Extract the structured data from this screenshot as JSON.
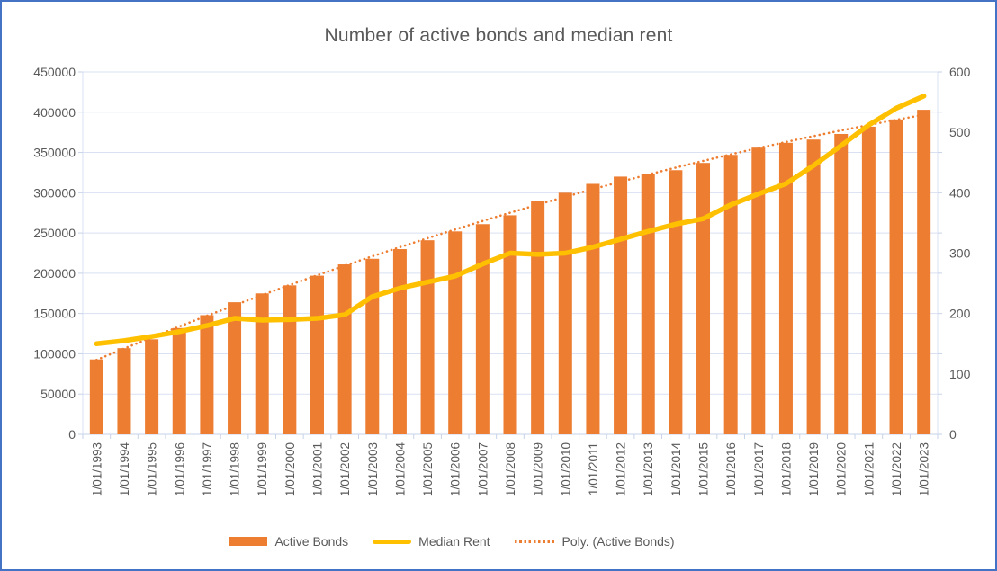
{
  "chart_data": {
    "type": "combo",
    "title": "Number of active bonds and median rent",
    "categories": [
      "1/01/1993",
      "1/01/1994",
      "1/01/1995",
      "1/01/1996",
      "1/01/1997",
      "1/01/1998",
      "1/01/1999",
      "1/01/2000",
      "1/01/2001",
      "1/01/2002",
      "1/01/2003",
      "1/01/2004",
      "1/01/2005",
      "1/01/2006",
      "1/01/2007",
      "1/01/2008",
      "1/01/2009",
      "1/01/2010",
      "1/01/2011",
      "1/01/2012",
      "1/01/2013",
      "1/01/2014",
      "1/01/2015",
      "1/01/2016",
      "1/01/2017",
      "1/01/2018",
      "1/01/2019",
      "1/01/2020",
      "1/01/2021",
      "1/01/2022",
      "1/01/2023"
    ],
    "series": [
      {
        "name": "Active Bonds",
        "type": "bar",
        "axis": "left",
        "color": "#ED7D31",
        "values": [
          93000,
          107000,
          118000,
          132000,
          148000,
          164000,
          175000,
          185000,
          197000,
          211000,
          218000,
          230000,
          241000,
          252000,
          261000,
          272000,
          290000,
          300000,
          311000,
          320000,
          323000,
          328000,
          337000,
          347000,
          356000,
          362000,
          366000,
          373000,
          382000,
          391000,
          403000
        ]
      },
      {
        "name": "Median Rent",
        "type": "line",
        "axis": "right",
        "color": "#FFC000",
        "values": [
          150,
          155,
          162,
          170,
          180,
          192,
          189,
          190,
          192,
          198,
          228,
          242,
          252,
          262,
          282,
          300,
          298,
          300,
          310,
          323,
          336,
          348,
          357,
          380,
          398,
          415,
          445,
          478,
          512,
          540,
          560
        ]
      },
      {
        "name": "Poly. (Active Bonds)",
        "type": "polynomial-trendline",
        "source": "Active Bonds",
        "degree": 2,
        "axis": "left",
        "color": "#ED7D31",
        "line_style": "dotted"
      }
    ],
    "axes": {
      "left": {
        "min": 0,
        "max": 450000,
        "step": 50000,
        "tick_labels": [
          "0",
          "50000",
          "100000",
          "150000",
          "200000",
          "250000",
          "300000",
          "350000",
          "400000",
          "450000"
        ]
      },
      "right": {
        "min": 0,
        "max": 600,
        "step": 100,
        "tick_labels": [
          "0",
          "100",
          "200",
          "300",
          "400",
          "500",
          "600"
        ]
      }
    },
    "legend": {
      "position": "bottom",
      "items": [
        "Active Bonds",
        "Median Rent",
        "Poly. (Active Bonds)"
      ]
    },
    "grid": true,
    "colors": {
      "bar": "#ED7D31",
      "line": "#FFC000",
      "trendline": "#ED7D31",
      "gridline": "#D9E1F2",
      "axis": "#C7D3E8",
      "text": "#595959",
      "frame_border": "#4472C4"
    }
  }
}
